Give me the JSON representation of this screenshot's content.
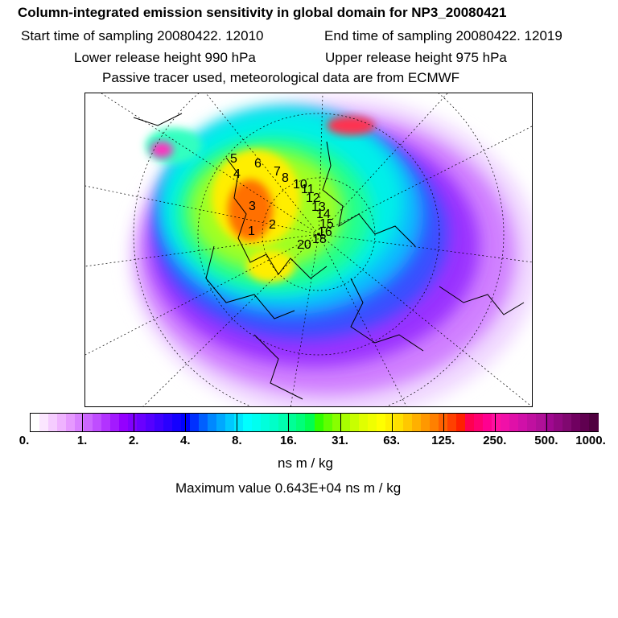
{
  "header": {
    "title": "Column-integrated emission sensitivity in global domain for NP3_20080421",
    "start_time": "Start time of sampling 20080422. 12010",
    "end_time": "End time of sampling 20080422. 12019",
    "lower_release": "Lower release height  990 hPa",
    "upper_release": "Upper release height  975 hPa",
    "note": "Passive tracer used, meteorological data are from ECMWF"
  },
  "map": {
    "track_labels": [
      "1",
      "2",
      "3",
      "4",
      "5",
      "6",
      "7",
      "8",
      "10",
      "11",
      "12",
      "13",
      "14",
      "15",
      "16",
      "18",
      "20"
    ]
  },
  "colorbar": {
    "unit": "ns m / kg",
    "tick_labels": [
      "0.",
      "1.",
      "2.",
      "4.",
      "8.",
      "16.",
      "31.",
      "63.",
      "125.",
      "250.",
      "500.",
      "1000."
    ],
    "colors": [
      "#ffffff",
      "#fbe6ff",
      "#f5ccff",
      "#efb3ff",
      "#e699ff",
      "#d980ff",
      "#cc66ff",
      "#bf4dff",
      "#b233ff",
      "#a31aff",
      "#9400ff",
      "#8000ff",
      "#6a00ff",
      "#5500ff",
      "#3f00ff",
      "#2a00ff",
      "#1400ff",
      "#0000ff",
      "#0030ff",
      "#0060ff",
      "#0088ff",
      "#00a8ff",
      "#00c8ff",
      "#00e6ff",
      "#00ffff",
      "#00fff0",
      "#00ffdc",
      "#00ffc8",
      "#00ffb0",
      "#00ff96",
      "#00ff78",
      "#00ff50",
      "#30ff00",
      "#60ff00",
      "#88ff00",
      "#a8ff00",
      "#c8ff00",
      "#e0ff00",
      "#f0ff00",
      "#ffff00",
      "#fff000",
      "#ffe000",
      "#ffc800",
      "#ffb000",
      "#ff9800",
      "#ff8000",
      "#ff6000",
      "#ff4000",
      "#ff2000",
      "#ff0050",
      "#ff0070",
      "#ff0090",
      "#ff10a0",
      "#f010a8",
      "#e010a8",
      "#d010a8",
      "#c010a0",
      "#b01098",
      "#a00890",
      "#900880",
      "#800870",
      "#700060",
      "#600050",
      "#500040"
    ]
  },
  "max_value": "Maximum value  0.643E+04 ns m / kg"
}
